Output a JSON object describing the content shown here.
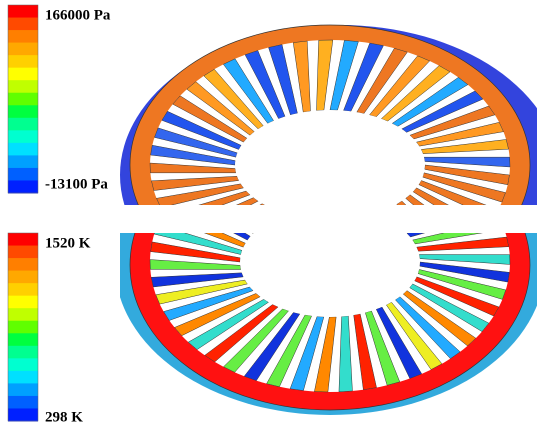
{
  "panels": [
    {
      "colorbar": {
        "max_label": "166000 Pa",
        "min_label": "-13100 Pa"
      }
    },
    {
      "colorbar": {
        "max_label": "1520 K",
        "min_label": "298 K"
      }
    }
  ]
}
